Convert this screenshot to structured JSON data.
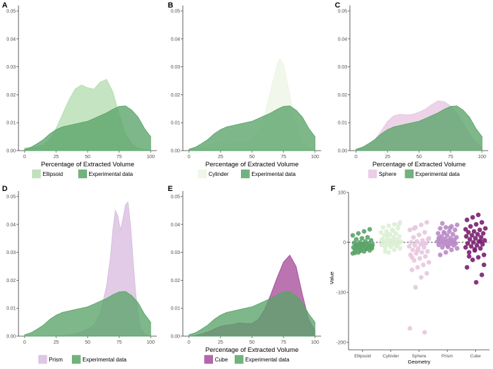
{
  "chart_data": [
    {
      "panel": "A",
      "type": "area",
      "xlabel": "Percentage of Extracted Volume",
      "x_ticks": [
        "0",
        "25",
        "50",
        "75",
        "100"
      ],
      "y_ticks": [
        "0.00",
        "0.01",
        "0.02",
        "0.03",
        "0.04",
        "0.05"
      ],
      "xlim": [
        0,
        100
      ],
      "ylim": [
        0,
        0.05
      ],
      "legend": {
        "position": "bottom"
      },
      "series": [
        {
          "name": "Ellipsoid",
          "color": "#b5dcb0",
          "x": [
            0,
            5,
            10,
            15,
            20,
            25,
            30,
            35,
            40,
            45,
            50,
            55,
            60,
            65,
            70,
            75,
            80,
            85,
            90,
            95,
            100
          ],
          "y": [
            0.001,
            0.001,
            0.0015,
            0.002,
            0.004,
            0.008,
            0.013,
            0.018,
            0.022,
            0.0235,
            0.0225,
            0.022,
            0.0245,
            0.0255,
            0.021,
            0.013,
            0.006,
            0.0025,
            0.001,
            0.0004,
            0.0002
          ]
        },
        {
          "name": "Experimental data",
          "color": "#5aa469",
          "x": [
            0,
            5,
            10,
            15,
            20,
            25,
            30,
            35,
            40,
            45,
            50,
            55,
            60,
            65,
            70,
            75,
            80,
            85,
            90,
            95,
            100
          ],
          "y": [
            0.0005,
            0.0012,
            0.0025,
            0.004,
            0.006,
            0.0075,
            0.0085,
            0.009,
            0.0095,
            0.01,
            0.0105,
            0.0115,
            0.0125,
            0.0135,
            0.0148,
            0.0158,
            0.016,
            0.0145,
            0.012,
            0.008,
            0.005
          ]
        }
      ]
    },
    {
      "panel": "B",
      "type": "area",
      "xlabel": "Percentage of Extracted Volume",
      "x_ticks": [
        "0",
        "25",
        "50",
        "75",
        "100"
      ],
      "y_ticks": [
        "0.00",
        "0.01",
        "0.02",
        "0.03",
        "0.04",
        "0.05"
      ],
      "xlim": [
        0,
        100
      ],
      "ylim": [
        0,
        0.05
      ],
      "legend": {
        "position": "bottom"
      },
      "series": [
        {
          "name": "Cylinder",
          "color": "#edf5e4",
          "x": [
            0,
            5,
            10,
            15,
            20,
            25,
            30,
            35,
            40,
            45,
            50,
            55,
            60,
            65,
            70,
            72,
            75,
            80,
            85,
            90,
            95,
            100
          ],
          "y": [
            0.0005,
            0.001,
            0.0015,
            0.002,
            0.0025,
            0.003,
            0.0035,
            0.003,
            0.0025,
            0.003,
            0.004,
            0.007,
            0.013,
            0.022,
            0.031,
            0.033,
            0.031,
            0.02,
            0.009,
            0.003,
            0.001,
            0.0003
          ]
        },
        {
          "name": "Experimental data",
          "color": "#5aa469",
          "x": [
            0,
            5,
            10,
            15,
            20,
            25,
            30,
            35,
            40,
            45,
            50,
            55,
            60,
            65,
            70,
            75,
            80,
            85,
            90,
            95,
            100
          ],
          "y": [
            0.0005,
            0.0012,
            0.0025,
            0.004,
            0.006,
            0.0075,
            0.0085,
            0.009,
            0.0095,
            0.01,
            0.0105,
            0.0115,
            0.0125,
            0.0135,
            0.0148,
            0.0158,
            0.016,
            0.0145,
            0.012,
            0.008,
            0.005
          ]
        }
      ]
    },
    {
      "panel": "C",
      "type": "area",
      "xlabel": "Percentage of Extracted Volume",
      "x_ticks": [
        "0",
        "25",
        "50",
        "75",
        "100"
      ],
      "y_ticks": [
        "0.00",
        "0.01",
        "0.02",
        "0.03",
        "0.04",
        "0.05"
      ],
      "xlim": [
        0,
        100
      ],
      "ylim": [
        0,
        0.05
      ],
      "legend": {
        "position": "bottom"
      },
      "series": [
        {
          "name": "Sphere",
          "color": "#e7c6e0",
          "x": [
            0,
            5,
            10,
            15,
            20,
            25,
            30,
            35,
            40,
            45,
            50,
            55,
            60,
            65,
            70,
            75,
            80,
            85,
            90,
            95,
            100
          ],
          "y": [
            0.0003,
            0.0008,
            0.002,
            0.004,
            0.007,
            0.0105,
            0.0125,
            0.013,
            0.0128,
            0.013,
            0.0138,
            0.0148,
            0.0165,
            0.0178,
            0.0175,
            0.016,
            0.0135,
            0.01,
            0.006,
            0.003,
            0.001
          ]
        },
        {
          "name": "Experimental data",
          "color": "#5aa469",
          "x": [
            0,
            5,
            10,
            15,
            20,
            25,
            30,
            35,
            40,
            45,
            50,
            55,
            60,
            65,
            70,
            75,
            80,
            85,
            90,
            95,
            100
          ],
          "y": [
            0.0005,
            0.0012,
            0.0025,
            0.004,
            0.006,
            0.0075,
            0.0085,
            0.009,
            0.0095,
            0.01,
            0.0105,
            0.0115,
            0.0125,
            0.0135,
            0.0148,
            0.0158,
            0.016,
            0.0145,
            0.012,
            0.008,
            0.005
          ]
        }
      ]
    },
    {
      "panel": "D",
      "type": "area",
      "xlabel": "",
      "x_ticks": [
        "0",
        "25",
        "50",
        "75",
        "100"
      ],
      "y_ticks": [
        "0.00",
        "0.01",
        "0.02",
        "0.03",
        "0.04",
        "0.05"
      ],
      "xlim": [
        0,
        100
      ],
      "ylim": [
        0,
        0.05
      ],
      "legend": {
        "position": "bottom"
      },
      "series": [
        {
          "name": "Prism",
          "color": "#d8bcdf",
          "x": [
            0,
            10,
            20,
            30,
            40,
            45,
            50,
            55,
            60,
            65,
            68,
            70,
            72,
            74,
            76,
            78,
            80,
            82,
            84,
            86,
            88,
            90,
            92,
            95,
            100
          ],
          "y": [
            0,
            0,
            0,
            0.0002,
            0.0008,
            0.0015,
            0.0025,
            0.004,
            0.008,
            0.018,
            0.028,
            0.038,
            0.045,
            0.043,
            0.038,
            0.042,
            0.047,
            0.048,
            0.04,
            0.028,
            0.016,
            0.008,
            0.003,
            0.0008,
            0
          ]
        },
        {
          "name": "Experimental data",
          "color": "#5aa469",
          "x": [
            0,
            5,
            10,
            15,
            20,
            25,
            30,
            35,
            40,
            45,
            50,
            55,
            60,
            65,
            70,
            75,
            80,
            85,
            90,
            95,
            100
          ],
          "y": [
            0.0005,
            0.0012,
            0.0025,
            0.004,
            0.006,
            0.0075,
            0.0085,
            0.009,
            0.0095,
            0.01,
            0.0105,
            0.0115,
            0.0125,
            0.0135,
            0.0148,
            0.0158,
            0.016,
            0.0145,
            0.012,
            0.008,
            0.005
          ]
        }
      ]
    },
    {
      "panel": "E",
      "type": "area",
      "xlabel": "Percentage of Extracted Volume",
      "x_ticks": [
        "0",
        "25",
        "50",
        "75",
        "100"
      ],
      "y_ticks": [
        "0.00",
        "0.01",
        "0.02",
        "0.03",
        "0.04",
        "0.05"
      ],
      "xlim": [
        0,
        100
      ],
      "ylim": [
        0,
        0.05
      ],
      "legend": {
        "position": "bottom"
      },
      "series": [
        {
          "name": "Cube",
          "color": "#a64d9a",
          "x": [
            0,
            5,
            10,
            15,
            20,
            25,
            30,
            35,
            40,
            45,
            50,
            55,
            60,
            65,
            70,
            75,
            80,
            85,
            90,
            95,
            100
          ],
          "y": [
            0,
            0.0002,
            0.0008,
            0.0015,
            0.0025,
            0.0035,
            0.004,
            0.0042,
            0.0048,
            0.0045,
            0.0045,
            0.006,
            0.0095,
            0.015,
            0.021,
            0.0265,
            0.029,
            0.025,
            0.015,
            0.006,
            0.002
          ]
        },
        {
          "name": "Experimental data",
          "color": "#5aa469",
          "x": [
            0,
            5,
            10,
            15,
            20,
            25,
            30,
            35,
            40,
            45,
            50,
            55,
            60,
            65,
            70,
            75,
            80,
            85,
            90,
            95,
            100
          ],
          "y": [
            0.0005,
            0.0012,
            0.0025,
            0.004,
            0.006,
            0.0075,
            0.0085,
            0.009,
            0.0095,
            0.01,
            0.0105,
            0.0115,
            0.0125,
            0.0135,
            0.0148,
            0.0158,
            0.016,
            0.0145,
            0.012,
            0.008,
            0.005
          ]
        }
      ]
    },
    {
      "panel": "F",
      "type": "scatter",
      "xlabel": "Geometry",
      "ylabel": "Value",
      "categories": [
        "Ellipsoid",
        "Cylinder",
        "Sphere",
        "Prism",
        "Cube"
      ],
      "y_ticks": [
        "100",
        "0",
        "-100",
        "-200"
      ],
      "ylim": [
        -215,
        100
      ],
      "reference_line": 0,
      "series": [
        {
          "name": "Ellipsoid",
          "color": "#5aa469",
          "values": [
            -22,
            -20,
            -18,
            -16,
            -15,
            -14,
            -13,
            -12,
            -12,
            -11,
            -10,
            -10,
            -9,
            -8,
            -8,
            -7,
            -6,
            -5,
            -5,
            -4,
            -3,
            -2,
            -1,
            0,
            2,
            4,
            6,
            8,
            10,
            14,
            18,
            22,
            26,
            -21,
            -17,
            -13,
            -9,
            -6,
            -3
          ]
        },
        {
          "name": "Cylinder",
          "color": "#dcefd5",
          "values": [
            -20,
            -15,
            -12,
            -10,
            -8,
            -6,
            -5,
            -4,
            -3,
            -2,
            -1,
            0,
            1,
            2,
            3,
            4,
            5,
            6,
            8,
            10,
            12,
            14,
            16,
            18,
            20,
            22,
            25,
            28,
            30,
            33,
            36,
            40,
            -18,
            -9,
            -7,
            4,
            15,
            24,
            35
          ]
        },
        {
          "name": "Sphere",
          "color": "#e7c6e0",
          "values": [
            -180,
            -172,
            -90,
            -70,
            -62,
            -55,
            -50,
            -45,
            -40,
            -36,
            -32,
            -28,
            -25,
            -22,
            -20,
            -18,
            -15,
            -12,
            -10,
            -8,
            -6,
            -4,
            -2,
            0,
            2,
            4,
            6,
            10,
            15,
            20,
            25,
            30,
            35,
            40,
            -30,
            -16,
            -3,
            8,
            28
          ]
        },
        {
          "name": "Prism",
          "color": "#b98bc6",
          "values": [
            -25,
            -20,
            -15,
            -12,
            -10,
            -8,
            -6,
            -5,
            -4,
            -3,
            -2,
            -1,
            0,
            1,
            2,
            3,
            4,
            5,
            6,
            7,
            8,
            10,
            12,
            14,
            16,
            18,
            20,
            22,
            25,
            28,
            30,
            32,
            35,
            38,
            -9,
            -1,
            9,
            19,
            29
          ]
        },
        {
          "name": "Cube",
          "color": "#7a1f70",
          "values": [
            -80,
            -65,
            -50,
            -35,
            -30,
            -25,
            -20,
            -16,
            -12,
            -10,
            -8,
            -6,
            -4,
            -2,
            0,
            2,
            4,
            6,
            8,
            10,
            12,
            14,
            16,
            18,
            20,
            22,
            25,
            28,
            32,
            36,
            40,
            45,
            50,
            55,
            -45,
            -28,
            -14,
            2,
            26
          ]
        }
      ]
    }
  ]
}
